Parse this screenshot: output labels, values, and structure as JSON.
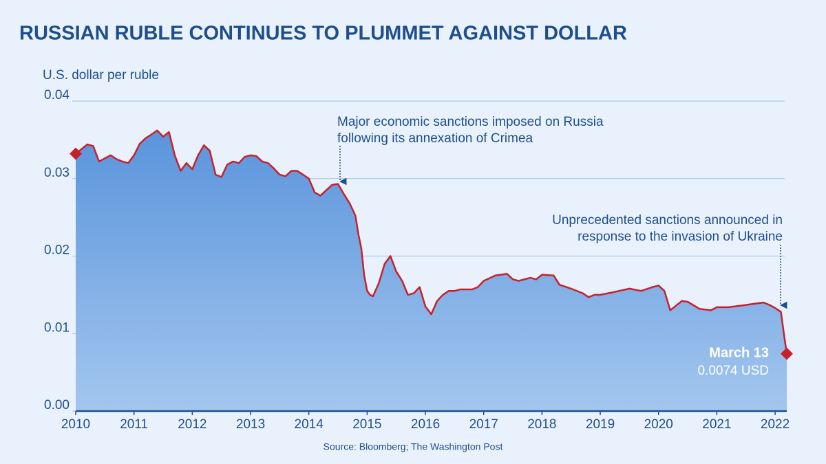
{
  "chart_data": {
    "type": "area",
    "title": "RUSSIAN RUBLE CONTINUES TO PLUMMET AGAINST DOLLAR",
    "y_label": "U.S. dollar per ruble",
    "source": "Source: Bloomberg; The Washington Post",
    "line_color": "#c8202b",
    "fill_color": [
      "#5a94dc",
      "#a3c6ee"
    ],
    "grid": true,
    "xlim": [
      2010,
      2022.2
    ],
    "xticks": [
      2010,
      2011,
      2012,
      2013,
      2014,
      2015,
      2016,
      2017,
      2018,
      2019,
      2020,
      2021,
      2022
    ],
    "ylim": [
      0,
      0.04
    ],
    "yticks": [
      {
        "value": 0,
        "label": "0.00"
      },
      0.01,
      0.02,
      0.03,
      0.04
    ],
    "x": [
      2010.0,
      2010.1,
      2010.2,
      2010.3,
      2010.4,
      2010.5,
      2010.6,
      2010.7,
      2010.8,
      2010.9,
      2011.0,
      2011.1,
      2011.2,
      2011.3,
      2011.4,
      2011.5,
      2011.6,
      2011.7,
      2011.8,
      2011.9,
      2012.0,
      2012.1,
      2012.2,
      2012.3,
      2012.4,
      2012.5,
      2012.6,
      2012.7,
      2012.8,
      2012.9,
      2013.0,
      2013.1,
      2013.2,
      2013.3,
      2013.4,
      2013.5,
      2013.6,
      2013.7,
      2013.8,
      2013.9,
      2014.0,
      2014.1,
      2014.2,
      2014.3,
      2014.4,
      2014.5,
      2014.6,
      2014.7,
      2014.8,
      2014.85,
      2014.9,
      2014.95,
      2015.0,
      2015.05,
      2015.1,
      2015.2,
      2015.3,
      2015.4,
      2015.5,
      2015.6,
      2015.7,
      2015.8,
      2015.9,
      2016.0,
      2016.1,
      2016.2,
      2016.3,
      2016.4,
      2016.5,
      2016.6,
      2016.8,
      2016.9,
      2017.0,
      2017.2,
      2017.4,
      2017.5,
      2017.6,
      2017.8,
      2017.9,
      2018.0,
      2018.2,
      2018.3,
      2018.5,
      2018.7,
      2018.8,
      2018.9,
      2019.0,
      2019.2,
      2019.5,
      2019.7,
      2019.9,
      2020.0,
      2020.1,
      2020.2,
      2020.3,
      2020.4,
      2020.5,
      2020.7,
      2020.9,
      2021.0,
      2021.2,
      2021.4,
      2021.6,
      2021.8,
      2021.9,
      2022.0,
      2022.1,
      2022.15,
      2022.2
    ],
    "values": [
      0.0332,
      0.0338,
      0.0344,
      0.0342,
      0.0322,
      0.0326,
      0.033,
      0.0325,
      0.0322,
      0.032,
      0.033,
      0.0345,
      0.0352,
      0.0357,
      0.0362,
      0.0354,
      0.036,
      0.033,
      0.031,
      0.032,
      0.0312,
      0.033,
      0.0343,
      0.0336,
      0.0305,
      0.0302,
      0.0318,
      0.0322,
      0.032,
      0.0328,
      0.033,
      0.0329,
      0.0322,
      0.032,
      0.0313,
      0.0305,
      0.0303,
      0.031,
      0.031,
      0.0305,
      0.03,
      0.0282,
      0.0278,
      0.0285,
      0.0292,
      0.0293,
      0.028,
      0.0268,
      0.0252,
      0.0228,
      0.021,
      0.0175,
      0.0155,
      0.015,
      0.0148,
      0.0165,
      0.019,
      0.02,
      0.018,
      0.0168,
      0.015,
      0.0152,
      0.016,
      0.0135,
      0.0125,
      0.0142,
      0.015,
      0.0155,
      0.0155,
      0.0157,
      0.0157,
      0.016,
      0.0168,
      0.0175,
      0.0177,
      0.017,
      0.0168,
      0.0172,
      0.017,
      0.0176,
      0.0175,
      0.0163,
      0.0158,
      0.0152,
      0.0147,
      0.015,
      0.015,
      0.0153,
      0.0158,
      0.0155,
      0.016,
      0.0162,
      0.0155,
      0.013,
      0.0136,
      0.0142,
      0.0141,
      0.0132,
      0.013,
      0.0134,
      0.0134,
      0.0136,
      0.0138,
      0.014,
      0.0137,
      0.0133,
      0.0128,
      0.01,
      0.0074
    ],
    "annotations": [
      {
        "text": [
          "Major economic sanctions imposed on Russia",
          "following its annexation of Crimea"
        ]
      },
      {
        "text": [
          "Unprecedented sanctions announced in",
          "response to the invasion of Ukraine"
        ]
      }
    ],
    "end_label": {
      "date": "March 13",
      "label": "0.0074 USD"
    }
  }
}
